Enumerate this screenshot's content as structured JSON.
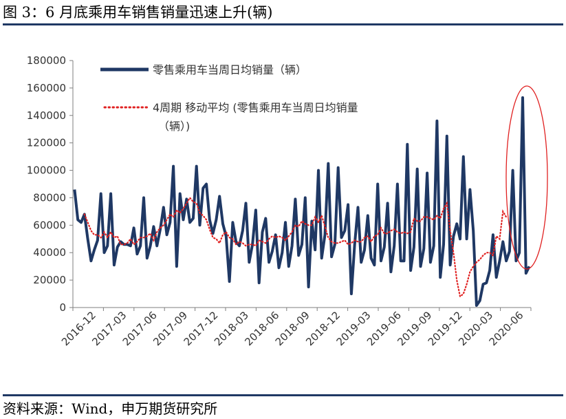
{
  "figure_title": "图 3：6 月底乘用车销售销量迅速上升(辆)",
  "source": "资料来源：Wind，申万期货研究所",
  "colors": {
    "primary": "#1f3864",
    "ma": "#e02020",
    "highlight": "#e02020",
    "axis": "#7f7f7f",
    "rule": "#1f3864"
  },
  "chart_data": {
    "type": "line",
    "title": "",
    "xlabel": "",
    "ylabel": "",
    "ylim": [
      0,
      180000
    ],
    "yticks": [
      0,
      20000,
      40000,
      60000,
      80000,
      100000,
      120000,
      140000,
      160000,
      180000
    ],
    "x_tick_labels": [
      "2016-12",
      "2017-03",
      "2017-06",
      "2017-09",
      "2017-12",
      "2018-03",
      "2018-06",
      "2018-09",
      "2018-12",
      "2019-03",
      "2019-06",
      "2019-09",
      "2019-12",
      "2020-03",
      "2020-06"
    ],
    "grid": false,
    "legend": {
      "position": "top-left",
      "entries": [
        "零售乘用车当周日均销量（辆）",
        "4周期 移动平均 (零售乘用车当周日均销量（辆）)"
      ]
    },
    "annotation": {
      "shape": "ellipse",
      "note": "red ellipse around the June 2020 weekly spike"
    },
    "series": [
      {
        "name": "零售乘用车当周日均销量（辆）",
        "style": "solid",
        "color": "#1f3864",
        "values": [
          86000,
          64000,
          62000,
          68000,
          50000,
          34000,
          42000,
          49000,
          83000,
          40000,
          45000,
          83000,
          31000,
          44000,
          48000,
          46000,
          46000,
          45000,
          58000,
          39000,
          45000,
          80000,
          36000,
          45000,
          59000,
          45000,
          57000,
          73000,
          53000,
          62000,
          103000,
          30000,
          83000,
          64000,
          79000,
          62000,
          65000,
          103000,
          60000,
          87000,
          90000,
          64000,
          54000,
          64000,
          81000,
          61000,
          52000,
          19000,
          62000,
          48000,
          45000,
          56000,
          76000,
          33000,
          46000,
          71000,
          18000,
          55000,
          65000,
          33000,
          41000,
          53000,
          29000,
          40000,
          62000,
          30000,
          45000,
          79000,
          38000,
          46000,
          80000,
          15000,
          63000,
          42000,
          100000,
          36000,
          53000,
          105000,
          37000,
          46000,
          102000,
          51000,
          56000,
          75000,
          10000,
          46000,
          73000,
          33000,
          42000,
          67000,
          36000,
          31000,
          90000,
          34000,
          44000,
          76000,
          26000,
          45000,
          90000,
          34000,
          34000,
          119000,
          27000,
          44000,
          101000,
          30000,
          43000,
          98000,
          33000,
          45000,
          136000,
          22000,
          46000,
          125000,
          31000,
          52000,
          61000,
          50000,
          110000,
          50000,
          86000,
          56000,
          1500,
          5000,
          17000,
          18000,
          27000,
          53000,
          22000,
          34000,
          48000,
          34000,
          41000,
          100000,
          34000,
          40000,
          153000,
          25000,
          30000
        ]
      },
      {
        "name": "4周期 移动平均 (零售乘用车当周日均销量（辆）)",
        "style": "dotted",
        "color": "#e02020",
        "start_index": 3,
        "values": [
          68000,
          62000,
          56000,
          53000,
          53000,
          51000,
          55000,
          51000,
          55000,
          51000,
          52000,
          46000,
          46000,
          47000,
          50000,
          46000,
          48000,
          51000,
          51000,
          52000,
          54000,
          49000,
          55000,
          58000,
          60000,
          64000,
          68000,
          66000,
          71000,
          69000,
          72000,
          76000,
          80000,
          77000,
          76000,
          69000,
          67000,
          64000,
          57000,
          51000,
          50000,
          47000,
          53000,
          55000,
          51000,
          50000,
          46000,
          48000,
          47000,
          45000,
          46000,
          46000,
          45000,
          49000,
          48000,
          47000,
          50000,
          52000,
          51000,
          52000,
          51000,
          49000,
          52000,
          55000,
          60000,
          59000,
          63000,
          61000,
          60000,
          60000,
          66000,
          62000,
          67000,
          59000,
          51000,
          48000,
          47000,
          47000,
          48000,
          49000,
          46000,
          47000,
          49000,
          48000,
          48000,
          51000,
          52000,
          48000,
          52000,
          53000,
          58000,
          54000,
          54000,
          56000,
          57000,
          55000,
          54000,
          55000,
          54000,
          55000,
          65000,
          63000,
          63000,
          66000,
          66000,
          65000,
          64000,
          67000,
          65000,
          72000,
          76000,
          56000,
          40000,
          20000,
          8000,
          10000,
          17000,
          26000,
          30000,
          33000,
          35000,
          38000,
          40000,
          40000,
          38000,
          52000,
          50000,
          70000,
          66000
        ]
      }
    ]
  }
}
